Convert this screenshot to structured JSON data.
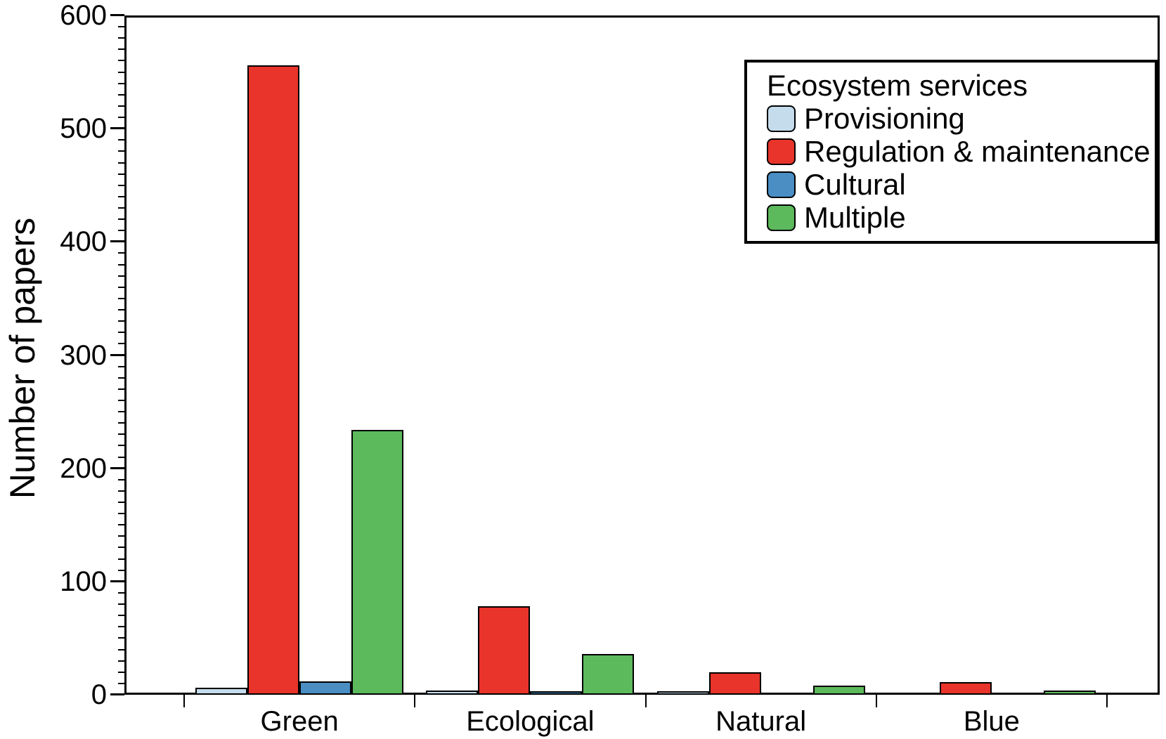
{
  "chart_data": {
    "type": "bar",
    "title": "",
    "xlabel": "",
    "ylabel": "Number of papers",
    "ylim": [
      0,
      600
    ],
    "y_major_tick_step": 100,
    "y_minor_tick_step": 10,
    "y_tick_labels": [
      "0",
      "100",
      "200",
      "300",
      "400",
      "500",
      "600"
    ],
    "grid": false,
    "background_color": "#FFFFFF",
    "axis_color": "#000000",
    "bar_edge_color": "#000000",
    "categories": [
      "Green",
      "Ecological",
      "Natural",
      "Blue"
    ],
    "series": [
      {
        "name": "Provisioning",
        "color": "#C5DCEC",
        "values": [
          6,
          4,
          3,
          0
        ]
      },
      {
        "name": "Regulation & maintenance",
        "color": "#E8342A",
        "values": [
          556,
          78,
          20,
          11
        ]
      },
      {
        "name": "Cultural",
        "color": "#4A8EC4",
        "values": [
          12,
          3,
          0,
          0
        ]
      },
      {
        "name": "Multiple",
        "color": "#5CB95C",
        "values": [
          234,
          36,
          8,
          4
        ]
      }
    ],
    "legend": {
      "title": "Ecosystem services",
      "position": "top-right",
      "entries": [
        "Provisioning",
        "Regulation & maintenance",
        "Cultural",
        "Multiple"
      ]
    }
  }
}
